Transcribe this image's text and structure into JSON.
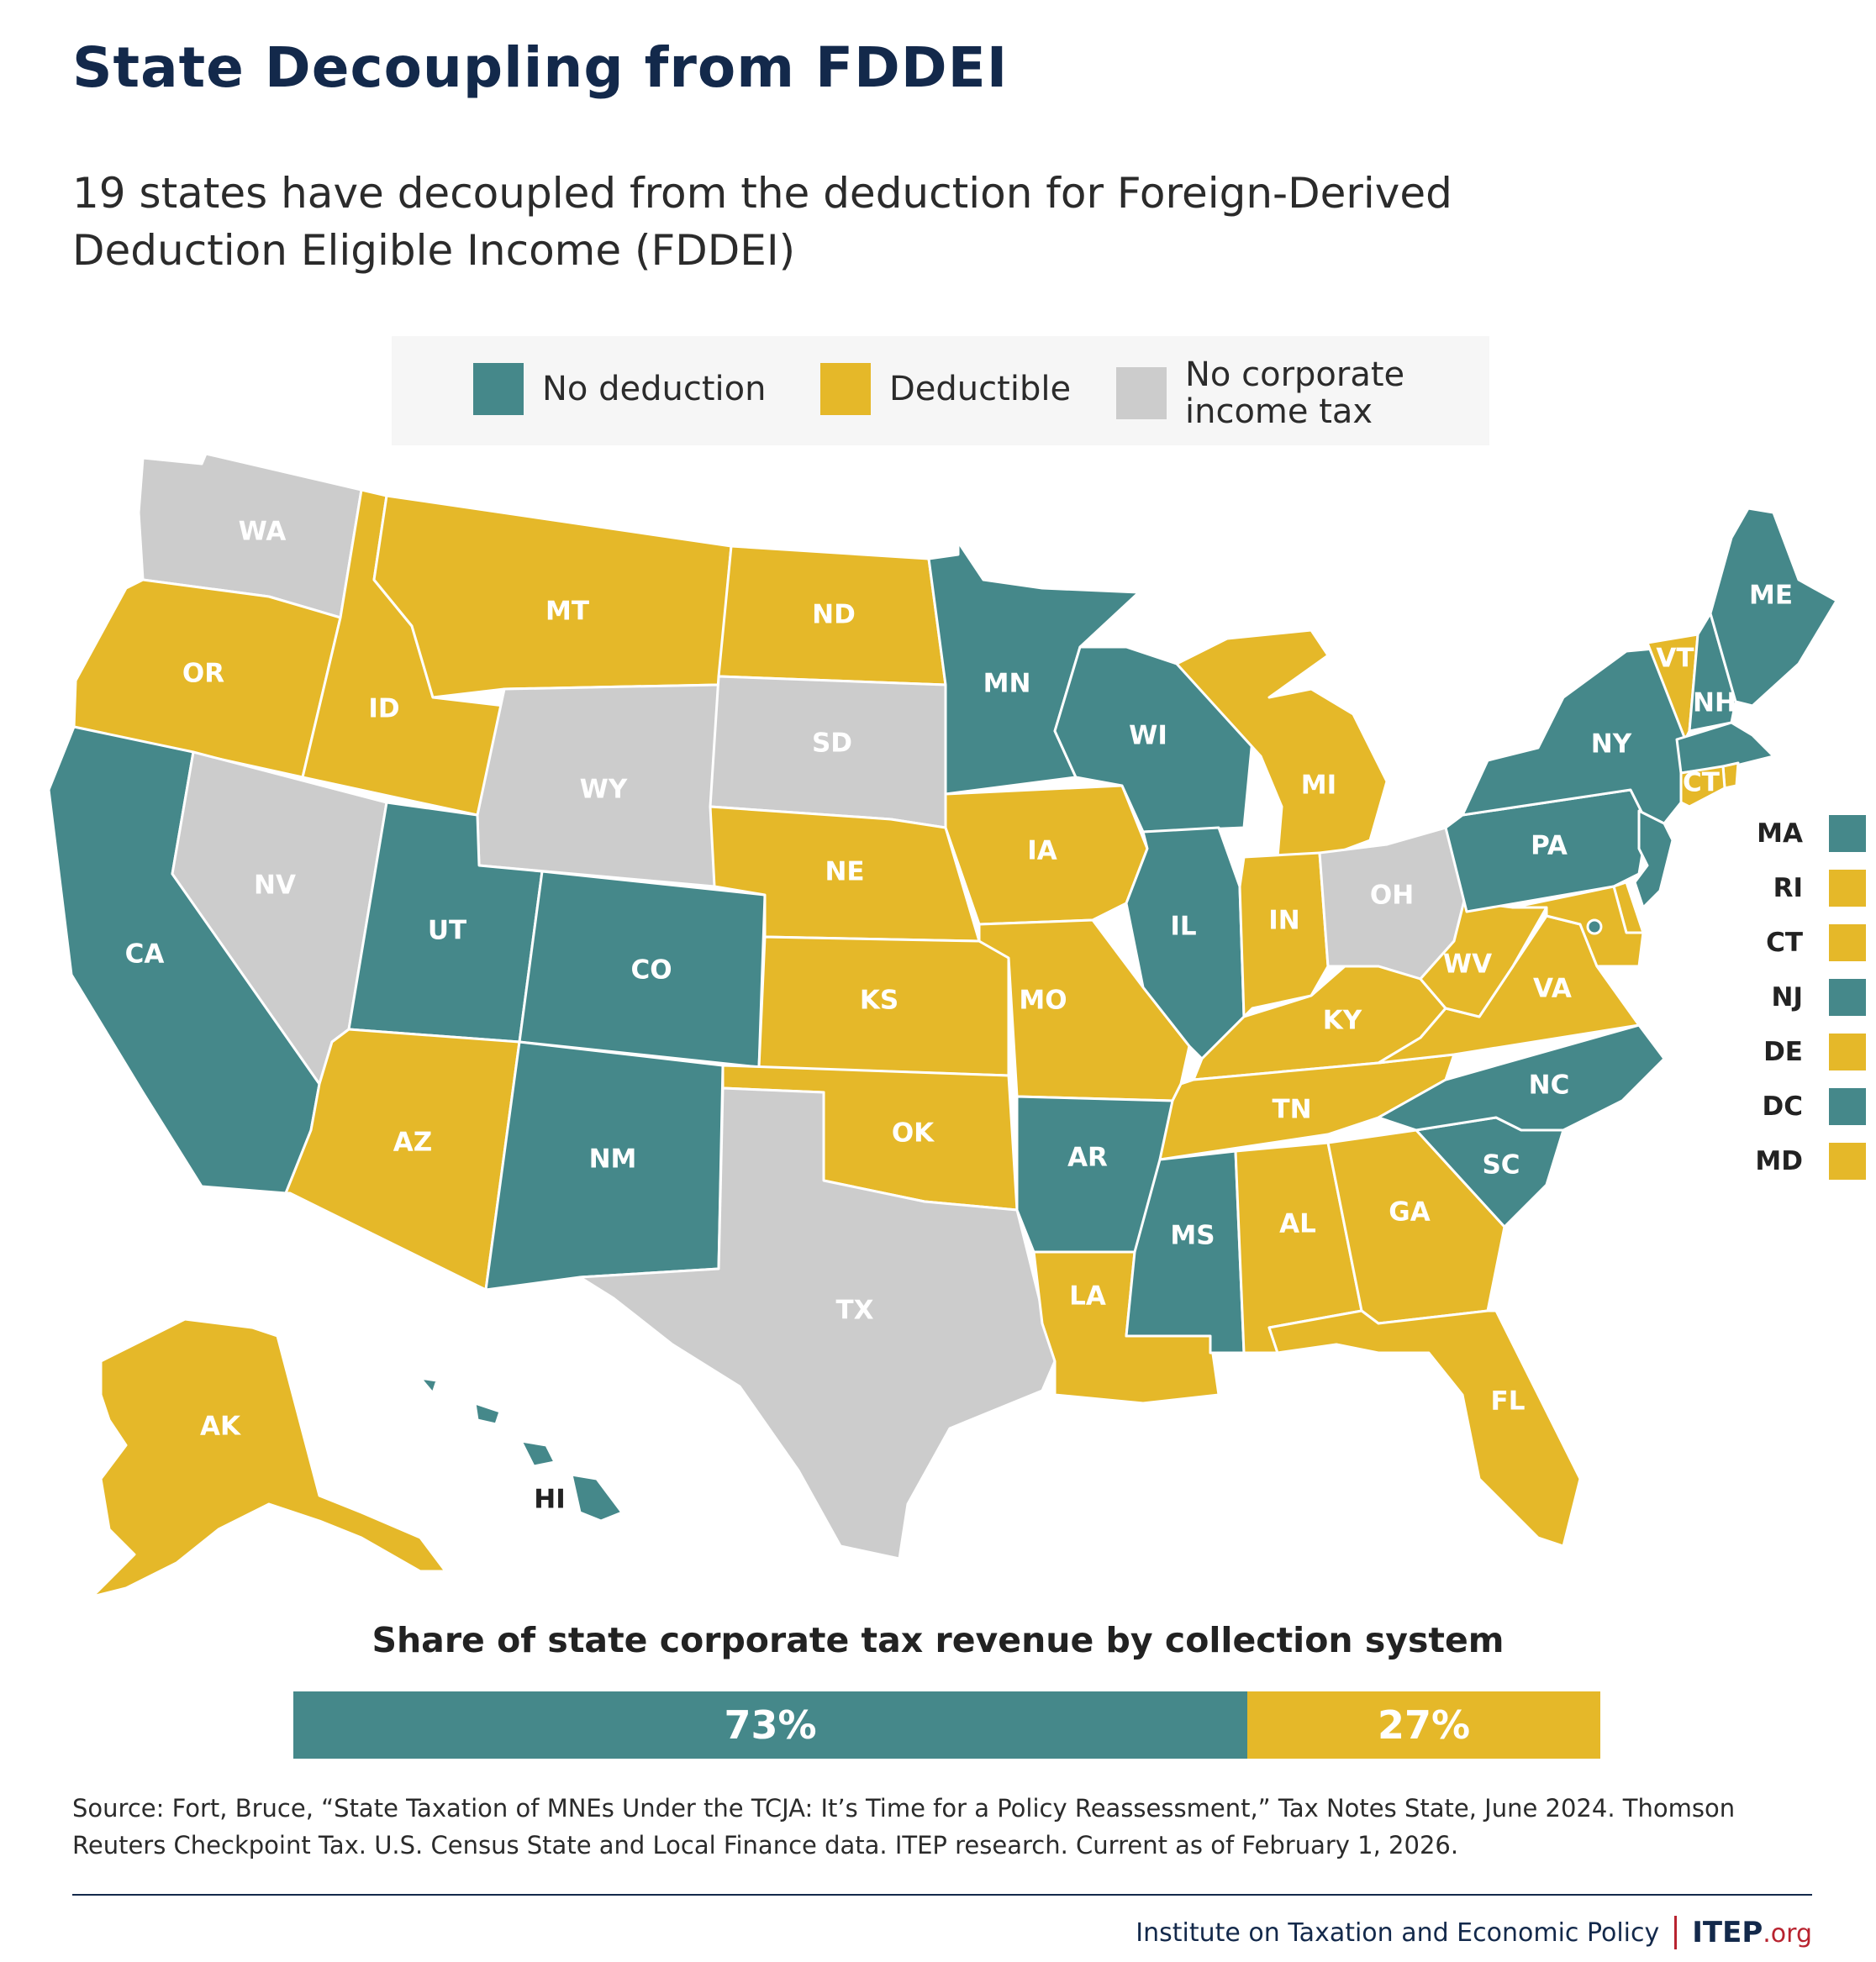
{
  "title": "State Decoupling from FDDEI",
  "subtitle": "19 states have decoupled from the deduction for Foreign-Derived Deduction Eligible Income (FDDEI)",
  "colors": {
    "no_deduction": "#45888a",
    "deductible": "#e5b829",
    "no_corporate_tax": "#cccccc"
  },
  "legend": {
    "no_deduction": "No deduction",
    "deductible": "Deductible",
    "no_corporate_tax": "No corporate income tax"
  },
  "states": {
    "WA": "none",
    "OR": "deductible",
    "CA": "no_deduction",
    "NV": "none",
    "ID": "deductible",
    "MT": "deductible",
    "WY": "none",
    "UT": "no_deduction",
    "AZ": "deductible",
    "CO": "no_deduction",
    "NM": "no_deduction",
    "ND": "deductible",
    "SD": "none",
    "NE": "deductible",
    "KS": "deductible",
    "OK": "deductible",
    "TX": "none",
    "MN": "no_deduction",
    "IA": "deductible",
    "MO": "deductible",
    "AR": "no_deduction",
    "LA": "deductible",
    "WI": "no_deduction",
    "IL": "no_deduction",
    "MI": "deductible",
    "IN": "deductible",
    "OH": "none",
    "KY": "deductible",
    "TN": "deductible",
    "MS": "no_deduction",
    "AL": "deductible",
    "GA": "deductible",
    "FL": "deductible",
    "SC": "no_deduction",
    "NC": "no_deduction",
    "VA": "deductible",
    "WV": "deductible",
    "PA": "no_deduction",
    "NY": "no_deduction",
    "VT": "deductible",
    "NH": "no_deduction",
    "ME": "no_deduction",
    "MA": "no_deduction",
    "RI": "deductible",
    "CT": "deductible",
    "NJ": "no_deduction",
    "DE": "deductible",
    "MD": "deductible",
    "DC": "no_deduction",
    "AK": "deductible",
    "HI": "no_deduction"
  },
  "small_states": [
    {
      "abbr": "MA",
      "status": "no_deduction"
    },
    {
      "abbr": "RI",
      "status": "deductible"
    },
    {
      "abbr": "CT",
      "status": "deductible"
    },
    {
      "abbr": "NJ",
      "status": "no_deduction"
    },
    {
      "abbr": "DE",
      "status": "deductible"
    },
    {
      "abbr": "DC",
      "status": "no_deduction"
    },
    {
      "abbr": "MD",
      "status": "deductible"
    }
  ],
  "bar": {
    "title": "Share of state corporate tax revenue by collection system",
    "segments": [
      {
        "label": "73%",
        "value": 73,
        "status": "no_deduction"
      },
      {
        "label": "27%",
        "value": 27,
        "status": "deductible"
      }
    ]
  },
  "source": "Source: Fort, Bruce, “State Taxation of MNEs Under the TCJA: It’s Time for a Policy Reassessment,” Tax Notes State, June 2024. Thomson Reuters Checkpoint Tax. U.S. Census State and Local Finance data. ITEP research. Current as of February 1, 2026.",
  "footer": {
    "org_name": "Institute on Taxation and Economic Policy",
    "logo_main": "ITEP",
    "logo_suffix": ".org"
  }
}
